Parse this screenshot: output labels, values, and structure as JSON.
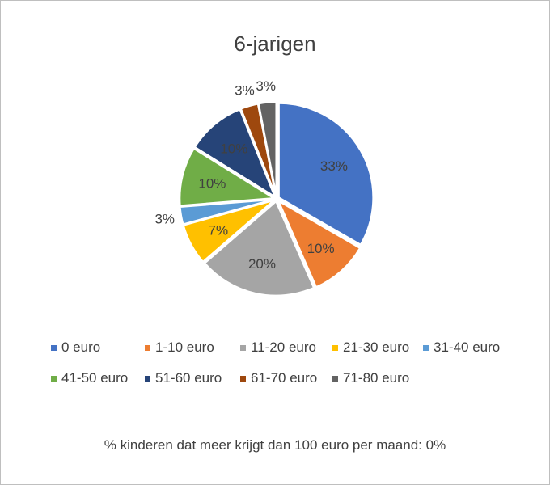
{
  "chart_data": {
    "type": "pie",
    "title": "6-jarigen",
    "start_angle_deg": 0,
    "direction": "clockwise",
    "slices": [
      {
        "label": "0 euro",
        "value": 33,
        "data_label": "33%",
        "color": "#4472C4"
      },
      {
        "label": "1-10 euro",
        "value": 10,
        "data_label": "10%",
        "color": "#ED7D31"
      },
      {
        "label": "11-20 euro",
        "value": 20,
        "data_label": "20%",
        "color": "#A5A5A5"
      },
      {
        "label": "21-30 euro",
        "value": 7,
        "data_label": "7%",
        "color": "#FFC000"
      },
      {
        "label": "31-40 euro",
        "value": 3,
        "data_label": "3%",
        "color": "#5B9BD5"
      },
      {
        "label": "41-50 euro",
        "value": 10,
        "data_label": "10%",
        "color": "#70AD47"
      },
      {
        "label": "51-60 euro",
        "value": 10,
        "data_label": "10%",
        "color": "#264478"
      },
      {
        "label": "61-70 euro",
        "value": 3,
        "data_label": "3%",
        "color": "#9E480E"
      },
      {
        "label": "71-80 euro",
        "value": 3,
        "data_label": "3%",
        "color": "#636363"
      }
    ],
    "legend_position": "bottom",
    "footnote": "% kinderen dat meer krijgt dan 100 euro per maand: 0%"
  }
}
